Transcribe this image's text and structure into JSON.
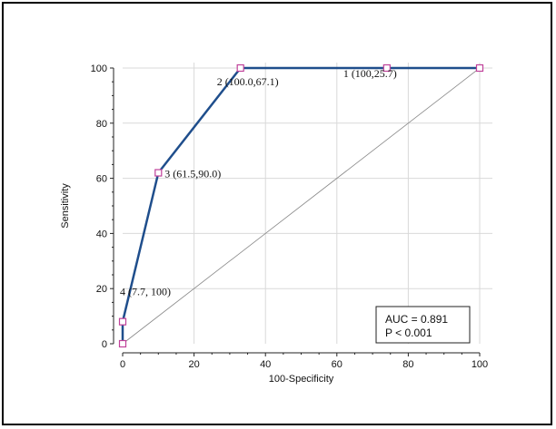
{
  "chart_data": {
    "type": "line",
    "xlabel": "100-Specificity",
    "ylabel": "Sensitivity",
    "xlim": [
      0,
      100
    ],
    "ylim": [
      0,
      100
    ],
    "xticks": [
      0,
      20,
      40,
      60,
      80,
      100
    ],
    "yticks": [
      0,
      20,
      40,
      60,
      80,
      100
    ],
    "grid": true,
    "series": [
      {
        "x": [
          0,
          0,
          10,
          33,
          74,
          100
        ],
        "y": [
          0,
          8,
          62,
          100,
          100,
          100
        ]
      }
    ],
    "reference_line": {
      "x": [
        0,
        100
      ],
      "y": [
        0,
        100
      ]
    },
    "point_labels": [
      {
        "text": "4 (7.7, 100)",
        "x": 0,
        "y": 8
      },
      {
        "text": "3 (61.5,90.0)",
        "x": 10,
        "y": 62
      },
      {
        "text": "2 (100.0,67.1)",
        "x": 33,
        "y": 100
      },
      {
        "text": "1 (100,25.7)",
        "x": 74,
        "y": 100
      }
    ],
    "annotations": [
      "AUC = 0.891",
      "P < 0.001"
    ],
    "colors": {
      "roc": "#1f4e8c",
      "marker": "#c0409a",
      "reference": "#888888",
      "grid": "#d9d9d9"
    }
  }
}
